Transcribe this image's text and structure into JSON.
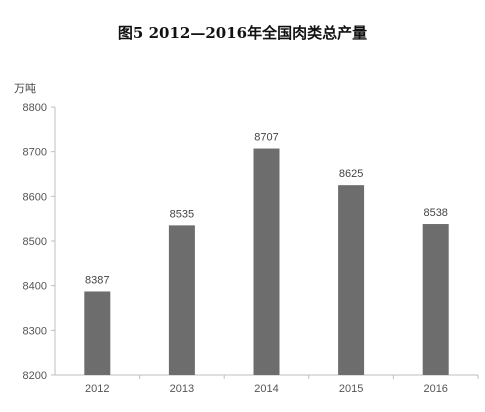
{
  "chart_data": {
    "type": "bar",
    "title": "图5 2012—2016年全国肉类总产量",
    "unit_label": "万吨",
    "categories": [
      "2012",
      "2013",
      "2014",
      "2015",
      "2016"
    ],
    "values": [
      8387,
      8535,
      8707,
      8625,
      8538
    ],
    "ylim": [
      8200,
      8800
    ],
    "yticks": [
      8200,
      8300,
      8400,
      8500,
      8600,
      8700,
      8800
    ],
    "grid": false,
    "colors": {
      "bar": "#6d6d6d",
      "axis": "#bfbfbf"
    }
  }
}
